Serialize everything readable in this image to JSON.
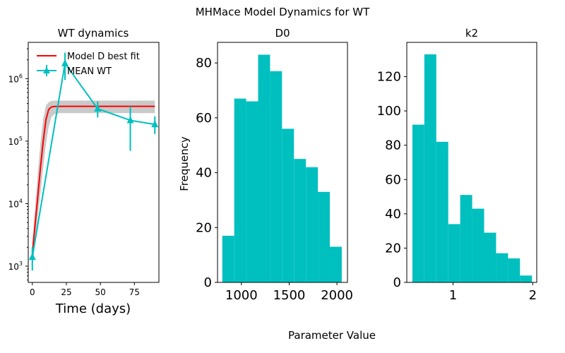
{
  "figure": {
    "suptitle": "MHMace Model Dynamics for WT",
    "supxlabel": "Parameter Value"
  },
  "colors": {
    "fit": "#ff0000",
    "mean": "#00bfbf",
    "band": "#c9c9c9",
    "hist": "#00bfbf"
  },
  "chart_data": [
    {
      "type": "line",
      "title": "WT dynamics",
      "xlabel": "Time (days)",
      "ylabel": "",
      "yscale": "log",
      "xlim": [
        -3,
        93
      ],
      "ylim": [
        550,
        3800000
      ],
      "xticks": [
        0,
        25,
        50,
        75
      ],
      "yticks": [
        {
          "value": 1000,
          "label": "10",
          "exp": "3"
        },
        {
          "value": 10000,
          "label": "10",
          "exp": "4"
        },
        {
          "value": 100000,
          "label": "10",
          "exp": "5"
        },
        {
          "value": 1000000,
          "label": "10",
          "exp": "6"
        }
      ],
      "legend": {
        "position": "upper-left",
        "entries": [
          "Model D best fit",
          "MEAN WT"
        ]
      },
      "series": [
        {
          "name": "Model D best fit",
          "kind": "line",
          "x": [
            0,
            2,
            4,
            6,
            8,
            10,
            12,
            14,
            16,
            20,
            30,
            50,
            70,
            90
          ],
          "y": [
            1600,
            4500,
            13000,
            38000,
            100000,
            220000,
            320000,
            352000,
            358000,
            360000,
            360000,
            360000,
            360000,
            360000
          ]
        },
        {
          "name": "Model D band",
          "kind": "band",
          "x": [
            0,
            2,
            4,
            6,
            8,
            10,
            12,
            14,
            16,
            20,
            30,
            50,
            70,
            90
          ],
          "lower": [
            900,
            2400,
            6000,
            15000,
            38000,
            90000,
            170000,
            240000,
            270000,
            280000,
            280000,
            280000,
            280000,
            280000
          ],
          "upper": [
            2400,
            8500,
            30000,
            95000,
            230000,
            370000,
            420000,
            440000,
            445000,
            445000,
            445000,
            445000,
            445000,
            445000
          ]
        },
        {
          "name": "MEAN WT",
          "kind": "errorbar",
          "x": [
            0,
            24,
            48,
            72,
            90
          ],
          "y": [
            1400,
            1750000,
            330000,
            215000,
            185000
          ],
          "yerr_low": [
            850,
            950000,
            240000,
            70000,
            130000
          ],
          "yerr_high": [
            2000,
            2600000,
            430000,
            360000,
            250000
          ]
        }
      ]
    },
    {
      "type": "bar",
      "subtype": "histogram",
      "title": "D0",
      "xlabel": "",
      "ylabel": "Frequency",
      "xlim": [
        750,
        2110
      ],
      "ylim": [
        0,
        87.5
      ],
      "xticks": [
        1000,
        1500,
        2000
      ],
      "yticks": [
        0,
        20,
        40,
        60,
        80
      ],
      "bin_edges": [
        800,
        925,
        1050,
        1175,
        1300,
        1425,
        1550,
        1675,
        1800,
        1925,
        2050
      ],
      "values": [
        17,
        67,
        66,
        83,
        77,
        56,
        45,
        42,
        33,
        13
      ]
    },
    {
      "type": "bar",
      "subtype": "histogram",
      "title": "k2",
      "xlabel": "",
      "ylabel": "",
      "xlim": [
        0.42,
        2.05
      ],
      "ylim": [
        0,
        140
      ],
      "xticks": [
        1,
        2
      ],
      "yticks": [
        0,
        20,
        40,
        60,
        80,
        100,
        120
      ],
      "bin_edges": [
        0.49,
        0.64,
        0.79,
        0.94,
        1.09,
        1.24,
        1.39,
        1.54,
        1.69,
        1.84,
        1.99
      ],
      "values": [
        92,
        133,
        82,
        34,
        51,
        43,
        29,
        17,
        14,
        4
      ]
    }
  ]
}
